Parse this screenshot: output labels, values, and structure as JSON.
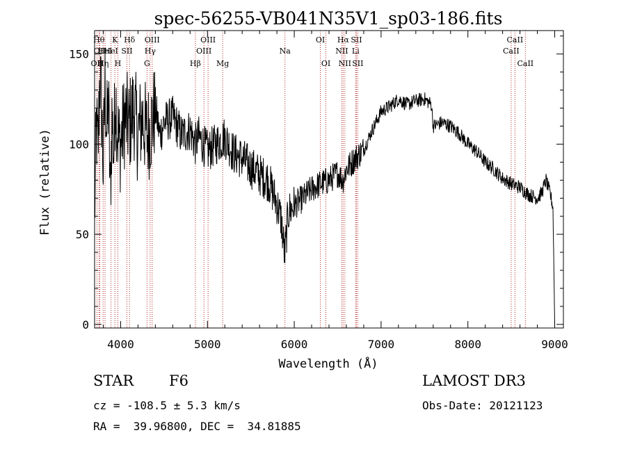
{
  "chart_data": {
    "type": "line",
    "title": "spec-56255-VB041N35V1_sp03-186.fits",
    "xlabel": "Wavelength (Å)",
    "ylabel": "Flux (relative)",
    "xlim": [
      3700,
      9100
    ],
    "ylim": [
      -2,
      163
    ],
    "x_ticks": [
      4000,
      5000,
      6000,
      7000,
      8000,
      9000
    ],
    "y_ticks": [
      0,
      50,
      100,
      150
    ],
    "series": [
      {
        "name": "flux",
        "x": [
          3700,
          3720,
          3740,
          3760,
          3780,
          3800,
          3820,
          3840,
          3860,
          3880,
          3900,
          3920,
          3940,
          3960,
          3980,
          4000,
          4050,
          4100,
          4150,
          4200,
          4250,
          4300,
          4350,
          4400,
          4450,
          4500,
          4600,
          4700,
          4800,
          4860,
          4900,
          5000,
          5100,
          5200,
          5300,
          5400,
          5500,
          5600,
          5700,
          5800,
          5850,
          5890,
          5930,
          6000,
          6100,
          6200,
          6300,
          6400,
          6500,
          6560,
          6600,
          6700,
          6800,
          6900,
          7000,
          7100,
          7200,
          7300,
          7400,
          7500,
          7580,
          7600,
          7700,
          7800,
          7900,
          8000,
          8100,
          8200,
          8300,
          8400,
          8500,
          8600,
          8700,
          8800,
          8850,
          8900,
          8950,
          8980,
          9000
        ],
        "y": [
          60,
          110,
          95,
          140,
          120,
          85,
          135,
          105,
          125,
          70,
          115,
          95,
          130,
          110,
          100,
          100,
          115,
          110,
          120,
          105,
          115,
          105,
          110,
          120,
          105,
          112,
          115,
          105,
          108,
          100,
          104,
          96,
          100,
          104,
          95,
          92,
          87,
          83,
          80,
          67,
          58,
          38,
          62,
          66,
          70,
          75,
          78,
          80,
          84,
          80,
          86,
          92,
          97,
          108,
          118,
          121,
          125,
          122,
          124,
          125,
          122,
          110,
          112,
          110,
          106,
          100,
          96,
          90,
          86,
          81,
          78,
          76,
          72,
          70,
          73,
          80,
          72,
          65,
          0
        ]
      }
    ],
    "lines": [
      {
        "wl": 3727,
        "label": "OII",
        "row": 3
      },
      {
        "wl": 3750,
        "label": "Hθ",
        "row": 1
      },
      {
        "wl": 3760,
        "label": "OII",
        "row": 2
      },
      {
        "wl": 3798,
        "label": "Hη",
        "row": 3
      },
      {
        "wl": 3820,
        "label": "HeI",
        "row": 2
      },
      {
        "wl": 3889,
        "label": "HeI",
        "row": 2
      },
      {
        "wl": 3934,
        "label": "K",
        "row": 1
      },
      {
        "wl": 3968,
        "label": "H",
        "row": 3
      },
      {
        "wl": 4072,
        "label": "SII",
        "row": 2
      },
      {
        "wl": 4102,
        "label": "Hδ",
        "row": 1
      },
      {
        "wl": 4304,
        "label": "G",
        "row": 3
      },
      {
        "wl": 4340,
        "label": "Hγ",
        "row": 2
      },
      {
        "wl": 4363,
        "label": "OIII",
        "row": 1
      },
      {
        "wl": 4861,
        "label": "Hβ",
        "row": 3
      },
      {
        "wl": 4959,
        "label": "OIII",
        "row": 2
      },
      {
        "wl": 5007,
        "label": "OIII",
        "row": 1
      },
      {
        "wl": 5175,
        "label": "Mg",
        "row": 3
      },
      {
        "wl": 5893,
        "label": "Na",
        "row": 2
      },
      {
        "wl": 6300,
        "label": "OI",
        "row": 1
      },
      {
        "wl": 6364,
        "label": "OI",
        "row": 3
      },
      {
        "wl": 6548,
        "label": "NII",
        "row": 2
      },
      {
        "wl": 6563,
        "label": "Hα",
        "row": 1
      },
      {
        "wl": 6583,
        "label": "NII",
        "row": 3
      },
      {
        "wl": 6707,
        "label": "Li",
        "row": 2
      },
      {
        "wl": 6716,
        "label": "SII",
        "row": 1
      },
      {
        "wl": 6731,
        "label": "SII",
        "row": 3
      },
      {
        "wl": 8498,
        "label": "CaII",
        "row": 2
      },
      {
        "wl": 8542,
        "label": "CaII",
        "row": 1
      },
      {
        "wl": 8662,
        "label": "CaII",
        "row": 3
      }
    ]
  },
  "info": {
    "object_type": "STAR",
    "subclass": "F6",
    "survey": "LAMOST DR3",
    "cz": "cz = -108.5 ± 5.3 km/s",
    "obs_date": "Obs-Date: 20121123",
    "radec": "RA =  39.96800, DEC =  34.81885"
  }
}
